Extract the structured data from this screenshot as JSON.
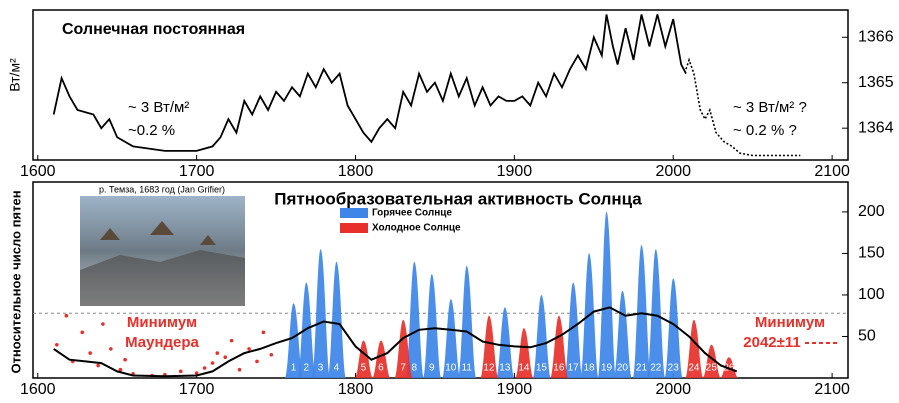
{
  "chart_data": [
    {
      "type": "line",
      "title": "Солнечная постоянная",
      "y_label": "Вт/м²",
      "annotations": [
        "~ 3 Вт/м²",
        "~0.2 %",
        "~ 3 Вт/м² ?",
        "~ 0.2 % ?"
      ],
      "xlim": [
        1597,
        2110
      ],
      "xticks": [
        1600,
        1700,
        1800,
        1900,
        2000,
        2100
      ],
      "ylim": [
        1363.3,
        1366.6
      ],
      "yticks": [
        1364,
        1365,
        1366
      ],
      "series": [
        {
          "color": "#000000",
          "dashed": false,
          "x": [
            1610,
            1615,
            1620,
            1625,
            1635,
            1640,
            1645,
            1650,
            1660,
            1670,
            1680,
            1700,
            1710,
            1715,
            1720,
            1725,
            1730,
            1735,
            1740,
            1745,
            1750,
            1755,
            1760,
            1765,
            1770,
            1775,
            1780,
            1785,
            1790,
            1795,
            1800,
            1805,
            1810,
            1815,
            1820,
            1825,
            1830,
            1835,
            1840,
            1845,
            1850,
            1855,
            1860,
            1865,
            1870,
            1875,
            1880,
            1885,
            1890,
            1895,
            1900,
            1905,
            1910,
            1915,
            1920,
            1925,
            1930,
            1935,
            1940,
            1945,
            1950,
            1955,
            1958,
            1962,
            1965,
            1970,
            1975,
            1980,
            1985,
            1990,
            1995,
            2000,
            2005,
            2008
          ],
          "values": [
            1364.3,
            1365.1,
            1364.7,
            1364.4,
            1364.3,
            1364.0,
            1364.2,
            1363.8,
            1363.6,
            1363.55,
            1363.5,
            1363.5,
            1363.6,
            1363.8,
            1364.2,
            1363.9,
            1364.6,
            1364.3,
            1364.7,
            1364.4,
            1364.8,
            1364.6,
            1364.9,
            1364.7,
            1365.2,
            1364.9,
            1365.3,
            1365.0,
            1365.2,
            1364.5,
            1364.2,
            1363.9,
            1363.7,
            1364.0,
            1364.2,
            1364.0,
            1364.8,
            1364.5,
            1365.2,
            1364.8,
            1365.0,
            1364.6,
            1365.2,
            1364.7,
            1365.1,
            1364.5,
            1364.9,
            1364.5,
            1364.7,
            1364.6,
            1364.6,
            1364.7,
            1364.5,
            1365.0,
            1364.7,
            1365.2,
            1364.9,
            1365.3,
            1365.6,
            1365.3,
            1366.0,
            1365.6,
            1366.5,
            1365.8,
            1365.4,
            1366.2,
            1365.5,
            1366.5,
            1365.8,
            1366.5,
            1365.8,
            1366.4,
            1365.4,
            1365.2
          ]
        },
        {
          "color": "#000000",
          "dashed": true,
          "x": [
            2008,
            2010,
            2013,
            2017,
            2020,
            2023,
            2027,
            2032,
            2037,
            2042,
            2050,
            2080
          ],
          "values": [
            1365.3,
            1365.5,
            1365.2,
            1364.4,
            1364.2,
            1364.4,
            1363.9,
            1363.7,
            1363.6,
            1363.45,
            1363.4,
            1363.4
          ]
        }
      ]
    },
    {
      "type": "cycles",
      "title": "Пятнообразовательная активность Солнца",
      "y_label": "Относительное число пятен",
      "image_caption": "р. Темза, 1683 год (Jan Grifier)",
      "annotations": [
        "Минимум",
        "Маундера",
        "Минимум",
        "2042±11"
      ],
      "xlim": [
        1597,
        2110
      ],
      "xticks": [
        1600,
        1700,
        1800,
        1900,
        2000,
        2100
      ],
      "ylim": [
        0,
        236
      ],
      "yticks": [
        50,
        100,
        150,
        200
      ],
      "reference_line": 78,
      "series": [
        {
          "name": "Горячее Солнце",
          "color": "#3d86e8",
          "labels": [
            "1",
            "2",
            "3",
            "4",
            "8",
            "9",
            "10",
            "11",
            "13",
            "15",
            "17",
            "18",
            "19",
            "20",
            "21",
            "22",
            "23"
          ],
          "x": [
            1761,
            1769,
            1778,
            1788,
            1837,
            1848,
            1860,
            1870,
            1894,
            1917,
            1937,
            1947,
            1958,
            1968,
            1980,
            1989,
            2000
          ],
          "values": [
            90,
            115,
            155,
            140,
            140,
            125,
            95,
            135,
            85,
            100,
            115,
            150,
            200,
            105,
            160,
            155,
            120
          ]
        },
        {
          "name": "Холодное Солнце",
          "color": "#e8302a",
          "labels": [
            "5",
            "6",
            "7",
            "12",
            "14",
            "16",
            "24",
            "25",
            "26"
          ],
          "x": [
            1805,
            1816,
            1830,
            1884,
            1906,
            1928,
            2013,
            2024,
            2035
          ],
          "values": [
            45,
            45,
            70,
            75,
            60,
            75,
            70,
            40,
            25
          ]
        }
      ],
      "trend": {
        "color": "#000000",
        "x": [
          1610,
          1620,
          1630,
          1640,
          1650,
          1660,
          1680,
          1700,
          1710,
          1720,
          1730,
          1740,
          1750,
          1760,
          1770,
          1780,
          1790,
          1800,
          1810,
          1820,
          1830,
          1840,
          1850,
          1860,
          1870,
          1880,
          1890,
          1900,
          1910,
          1920,
          1930,
          1940,
          1950,
          1960,
          1970,
          1980,
          1990,
          2000,
          2010,
          2020,
          2030,
          2040
        ],
        "values": [
          35,
          22,
          20,
          18,
          8,
          3,
          2,
          3,
          8,
          20,
          30,
          35,
          42,
          48,
          60,
          68,
          65,
          38,
          22,
          30,
          48,
          58,
          60,
          58,
          56,
          44,
          40,
          38,
          37,
          42,
          52,
          65,
          80,
          85,
          75,
          78,
          75,
          65,
          50,
          30,
          15,
          8
        ]
      },
      "scatter": {
        "color": "#e8302a",
        "x": [
          1612,
          1618,
          1622,
          1628,
          1633,
          1638,
          1641,
          1646,
          1652,
          1655,
          1660,
          1672,
          1680,
          1690,
          1700,
          1705,
          1710,
          1713,
          1718,
          1722,
          1727,
          1733,
          1738,
          1742,
          1747
        ],
        "values": [
          40,
          75,
          20,
          55,
          30,
          15,
          65,
          35,
          10,
          22,
          5,
          3,
          4,
          8,
          6,
          12,
          18,
          30,
          25,
          45,
          10,
          35,
          20,
          55,
          28
        ]
      }
    }
  ]
}
